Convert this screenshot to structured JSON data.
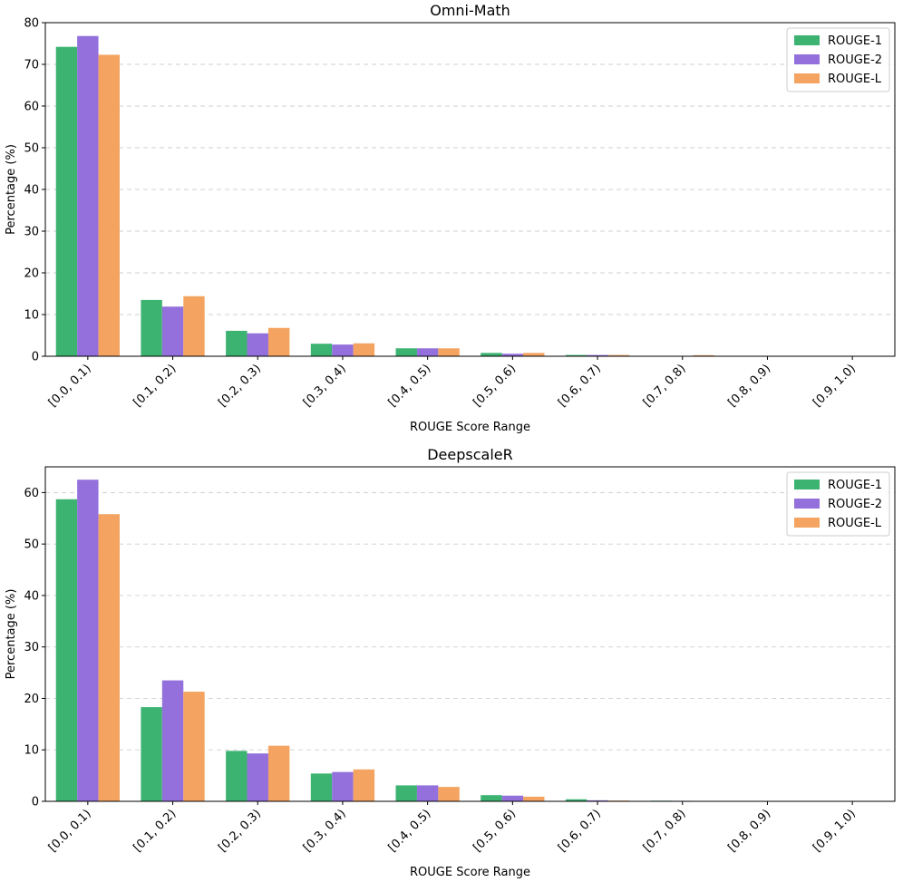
{
  "chart_data": [
    {
      "type": "bar",
      "title": "Omni-Math",
      "xlabel": "ROUGE Score Range",
      "ylabel": "Percentage (%)",
      "ylim": [
        0,
        80
      ],
      "yticks": [
        0,
        10,
        20,
        30,
        40,
        50,
        60,
        70,
        80
      ],
      "grid": "y-dashed",
      "legend_position": "top-right",
      "categories": [
        "[0.0, 0.1)",
        "[0.1, 0.2)",
        "[0.2, 0.3)",
        "[0.3, 0.4)",
        "[0.4, 0.5)",
        "[0.5, 0.6)",
        "[0.6, 0.7)",
        "[0.7, 0.8)",
        "[0.8, 0.9)",
        "[0.9, 1.0)"
      ],
      "series": [
        {
          "name": "ROUGE-1",
          "color": "#3cb371",
          "values": [
            74.2,
            13.5,
            6.1,
            3.0,
            1.9,
            0.8,
            0.3,
            0.1,
            0.05,
            0.02
          ]
        },
        {
          "name": "ROUGE-2",
          "color": "#9370db",
          "values": [
            76.8,
            11.9,
            5.5,
            2.8,
            1.9,
            0.6,
            0.3,
            0.08,
            0.03,
            0.01
          ]
        },
        {
          "name": "ROUGE-L",
          "color": "#f4a460",
          "values": [
            72.3,
            14.4,
            6.8,
            3.1,
            1.9,
            0.8,
            0.3,
            0.25,
            0.05,
            0.02
          ]
        }
      ]
    },
    {
      "type": "bar",
      "title": "DeepscaleR",
      "xlabel": "ROUGE Score Range",
      "ylabel": "Percentage (%)",
      "ylim": [
        0,
        65
      ],
      "yticks": [
        0,
        10,
        20,
        30,
        40,
        50,
        60
      ],
      "grid": "y-dashed",
      "legend_position": "top-right",
      "categories": [
        "[0.0, 0.1)",
        "[0.1, 0.2)",
        "[0.2, 0.3)",
        "[0.3, 0.4)",
        "[0.4, 0.5)",
        "[0.5, 0.6)",
        "[0.6, 0.7)",
        "[0.7, 0.8)",
        "[0.8, 0.9)",
        "[0.9, 1.0)"
      ],
      "series": [
        {
          "name": "ROUGE-1",
          "color": "#3cb371",
          "values": [
            58.7,
            18.3,
            9.8,
            5.4,
            3.1,
            1.2,
            0.4,
            0.12,
            0.04,
            0.02
          ]
        },
        {
          "name": "ROUGE-2",
          "color": "#9370db",
          "values": [
            62.5,
            23.5,
            9.3,
            5.7,
            3.1,
            1.1,
            0.2,
            0.1,
            0.03,
            0.01
          ]
        },
        {
          "name": "ROUGE-L",
          "color": "#f4a460",
          "values": [
            55.8,
            21.3,
            10.8,
            6.2,
            2.8,
            0.9,
            0.15,
            0.08,
            0.03,
            0.01
          ]
        }
      ]
    }
  ]
}
